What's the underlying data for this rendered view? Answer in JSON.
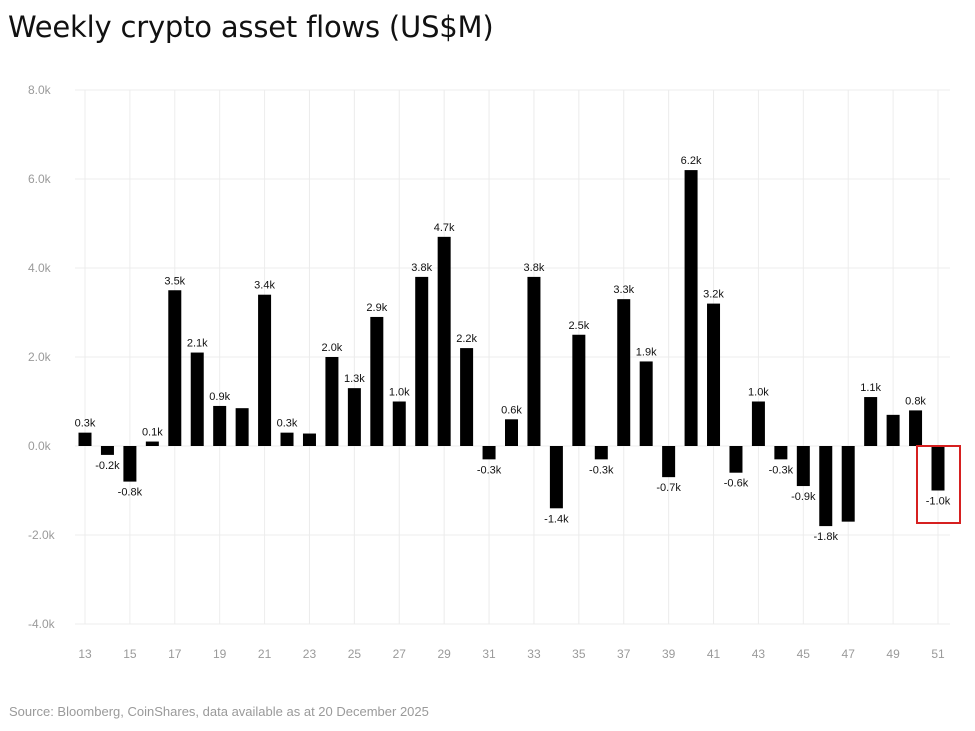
{
  "title": "Weekly crypto asset flows (US$M)",
  "source": "Source: Bloomberg, CoinShares, data available as at 20 December 2025",
  "colors": {
    "bar": "#000000",
    "grid": "#ececec",
    "highlight": "#d62020",
    "tick": "#9a9a9a"
  },
  "chart_data": {
    "type": "bar",
    "title": "Weekly crypto asset flows (US$M)",
    "ylim": [
      -4000,
      8000
    ],
    "yticks": [
      {
        "value": 8000,
        "label": "8.0k"
      },
      {
        "value": 6000,
        "label": "6.0k"
      },
      {
        "value": 4000,
        "label": "4.0k"
      },
      {
        "value": 2000,
        "label": "2.0k"
      },
      {
        "value": 0,
        "label": "0.0k"
      },
      {
        "value": -2000,
        "label": "-2.0k"
      },
      {
        "value": -4000,
        "label": "-4.0k"
      }
    ],
    "categories": [
      "13",
      "14",
      "15",
      "16",
      "17",
      "18",
      "19",
      "20",
      "21",
      "22",
      "23",
      "24",
      "25",
      "26",
      "27",
      "28",
      "29",
      "30",
      "31",
      "32",
      "33",
      "34",
      "35",
      "36",
      "37",
      "38",
      "39",
      "40",
      "41",
      "42",
      "43",
      "44",
      "45",
      "46",
      "47",
      "48",
      "49",
      "50",
      "51"
    ],
    "values": [
      300,
      -200,
      -800,
      100,
      3500,
      2100,
      900,
      850,
      3400,
      300,
      280,
      2000,
      1300,
      2900,
      1000,
      3800,
      4700,
      2200,
      -300,
      600,
      3800,
      -1400,
      2500,
      -300,
      3300,
      1900,
      -700,
      6200,
      3200,
      -600,
      1000,
      -300,
      -900,
      -1800,
      -1700,
      1100,
      700,
      800,
      -1000
    ],
    "data_labels": [
      "0.3k",
      "-0.2k",
      "-0.8k",
      "0.1k",
      "3.5k",
      "2.1k",
      "0.9k",
      "",
      "3.4k",
      "0.3k",
      "",
      "2.0k",
      "1.3k",
      "2.9k",
      "1.0k",
      "3.8k",
      "4.7k",
      "2.2k",
      "-0.3k",
      "0.6k",
      "3.8k",
      "-1.4k",
      "2.5k",
      "-0.3k",
      "3.3k",
      "1.9k",
      "-0.7k",
      "6.2k",
      "3.2k",
      "-0.6k",
      "1.0k",
      "-0.3k",
      "-0.9k",
      "-1.8k",
      "",
      "1.1k",
      "",
      "0.8k",
      "-1.0k"
    ],
    "xtick_labels": [
      "13",
      "",
      "15",
      "",
      "17",
      "",
      "19",
      "",
      "21",
      "",
      "23",
      "",
      "25",
      "",
      "27",
      "",
      "29",
      "",
      "31",
      "",
      "33",
      "",
      "35",
      "",
      "37",
      "",
      "39",
      "",
      "41",
      "",
      "43",
      "",
      "45",
      "",
      "47",
      "",
      "49",
      "",
      "51"
    ],
    "highlight_category": "51",
    "grid": true,
    "legend": "none"
  }
}
